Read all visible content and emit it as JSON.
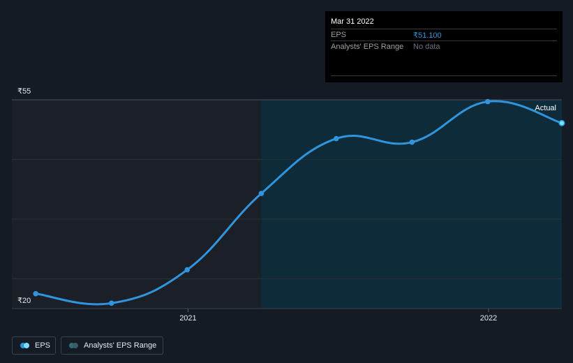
{
  "tooltip": {
    "date": "Mar 31 2022",
    "rows": [
      {
        "label": "EPS",
        "value": "₹51.100",
        "color": "#2f95dd"
      },
      {
        "label": "Analysts' EPS Range",
        "value": "No data",
        "color": "#6b7280"
      }
    ]
  },
  "legend": {
    "items": [
      {
        "label": "EPS",
        "dot_a": "#2f95dd",
        "dot_b": "#78e2f5"
      },
      {
        "label": "Analysts' EPS Range",
        "dot_a": "#2b6f79",
        "dot_b": "#3e5968"
      }
    ]
  },
  "colors": {
    "background": "#151b24",
    "past_band": "#1b2028",
    "forecast_band": "#0e2b39",
    "line": "#2f95dd",
    "grid": "#2a323d"
  },
  "chart_data": {
    "type": "line",
    "title": "",
    "xlabel": "",
    "ylabel": "",
    "y_tick_labels": {
      "top": "₹55",
      "bottom": "₹20"
    },
    "ylim": [
      20,
      55
    ],
    "xlim": [
      "2020-06-01",
      "2022-03-31"
    ],
    "x_ticks": [
      {
        "label": "2021",
        "date": "2021-01-01"
      },
      {
        "label": "2022",
        "date": "2022-01-01"
      }
    ],
    "shaded_from": "2021-03-31",
    "series": [
      {
        "name": "EPS",
        "annotation": "Actual",
        "points": [
          {
            "date": "2020-06-30",
            "value": 22.5
          },
          {
            "date": "2020-09-30",
            "value": 20.9
          },
          {
            "date": "2020-12-31",
            "value": 26.5
          },
          {
            "date": "2021-03-31",
            "value": 39.3
          },
          {
            "date": "2021-06-30",
            "value": 48.5
          },
          {
            "date": "2021-09-30",
            "value": 47.9
          },
          {
            "date": "2021-12-31",
            "value": 54.7
          },
          {
            "date": "2022-03-31",
            "value": 51.1
          }
        ]
      }
    ]
  }
}
